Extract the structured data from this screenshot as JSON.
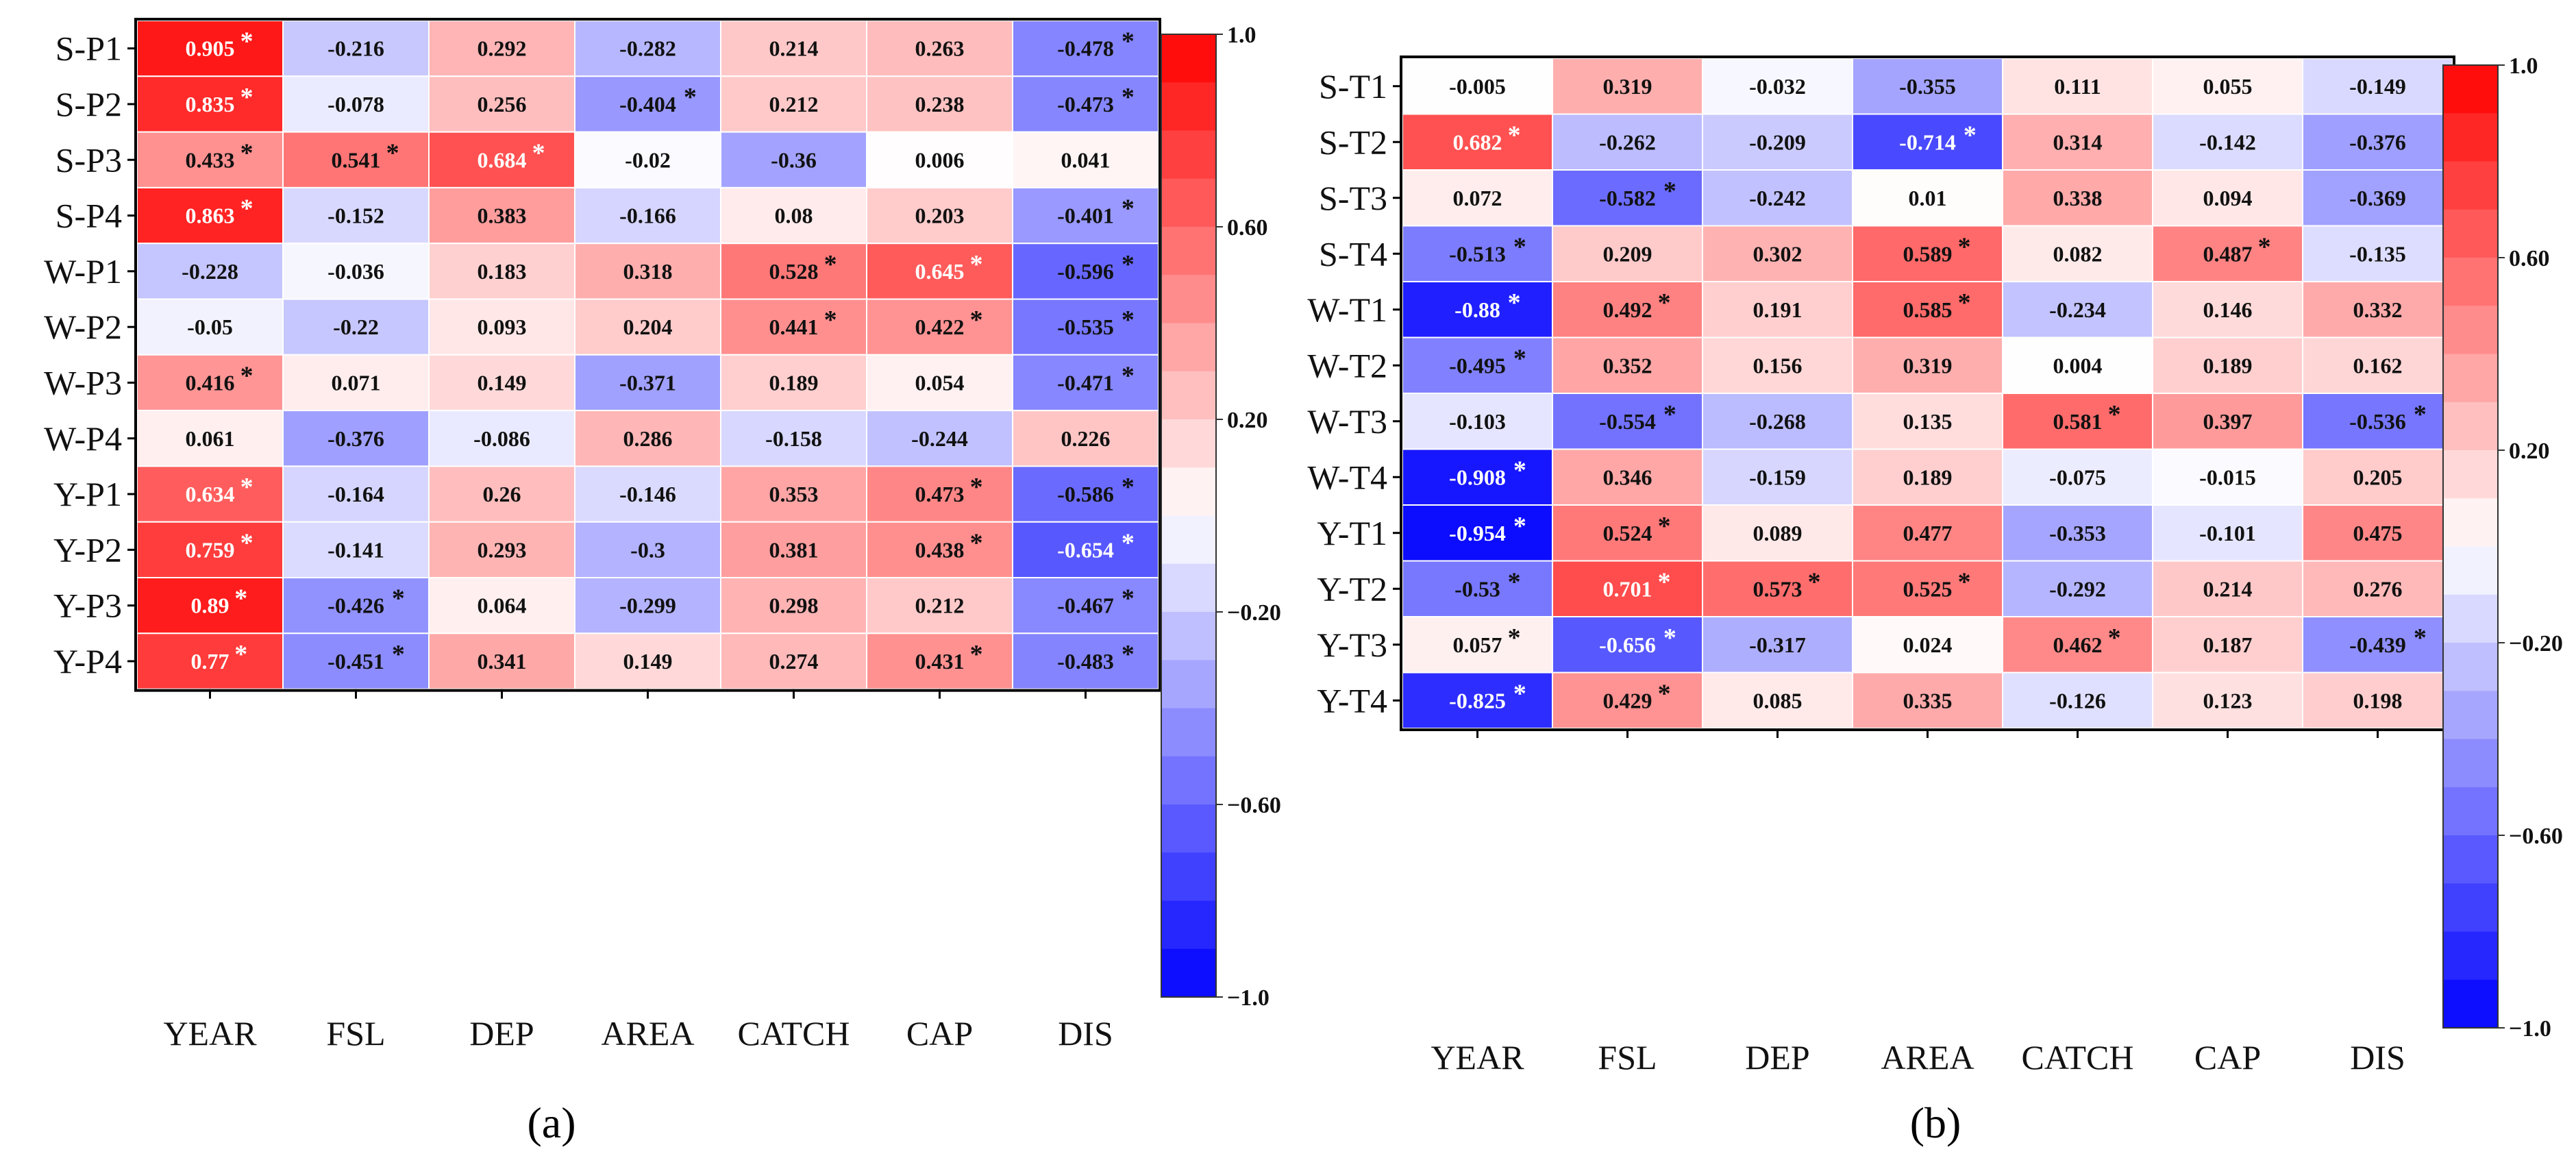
{
  "chart_data": [
    {
      "type": "heatmap",
      "panel_label": "(a)",
      "rows": [
        "S-P1",
        "S-P2",
        "S-P3",
        "S-P4",
        "W-P1",
        "W-P2",
        "W-P3",
        "W-P4",
        "Y-P1",
        "Y-P2",
        "Y-P3",
        "Y-P4"
      ],
      "columns": [
        "YEAR",
        "FSL",
        "DEP",
        "AREA",
        "CATCH",
        "CAP",
        "DIS"
      ],
      "values": [
        [
          0.905,
          -0.216,
          0.292,
          -0.282,
          0.214,
          0.263,
          -0.478
        ],
        [
          0.835,
          -0.078,
          0.256,
          -0.404,
          0.212,
          0.238,
          -0.473
        ],
        [
          0.433,
          0.541,
          0.684,
          -0.02,
          -0.36,
          0.006,
          0.041
        ],
        [
          0.863,
          -0.152,
          0.383,
          -0.166,
          0.08,
          0.203,
          -0.401
        ],
        [
          -0.228,
          -0.036,
          0.183,
          0.318,
          0.528,
          0.645,
          -0.596
        ],
        [
          -0.05,
          -0.22,
          0.093,
          0.204,
          0.441,
          0.422,
          -0.535
        ],
        [
          0.416,
          0.071,
          0.149,
          -0.371,
          0.189,
          0.054,
          -0.471
        ],
        [
          0.061,
          -0.376,
          -0.086,
          0.286,
          -0.158,
          -0.244,
          0.226
        ],
        [
          0.634,
          -0.164,
          0.26,
          -0.146,
          0.353,
          0.473,
          -0.586
        ],
        [
          0.759,
          -0.141,
          0.293,
          -0.3,
          0.381,
          0.438,
          -0.654
        ],
        [
          0.89,
          -0.426,
          0.064,
          -0.299,
          0.298,
          0.212,
          -0.467
        ],
        [
          0.77,
          -0.451,
          0.341,
          0.149,
          0.274,
          0.431,
          -0.483
        ]
      ],
      "labels": [
        [
          "0.905",
          "-0.216",
          "0.292",
          "-0.282",
          "0.214",
          "0.263",
          "-0.478"
        ],
        [
          "0.835",
          "-0.078",
          "0.256",
          "-0.404",
          "0.212",
          "0.238",
          "-0.473"
        ],
        [
          "0.433",
          "0.541",
          "0.684",
          "-0.02",
          "-0.36",
          "0.006",
          "0.041"
        ],
        [
          "0.863",
          "-0.152",
          "0.383",
          "-0.166",
          "0.08",
          "0.203",
          "-0.401"
        ],
        [
          "-0.228",
          "-0.036",
          "0.183",
          "0.318",
          "0.528",
          "0.645",
          "-0.596"
        ],
        [
          "-0.05",
          "-0.22",
          "0.093",
          "0.204",
          "0.441",
          "0.422",
          "-0.535"
        ],
        [
          "0.416",
          "0.071",
          "0.149",
          "-0.371",
          "0.189",
          "0.054",
          "-0.471"
        ],
        [
          "0.061",
          "-0.376",
          "-0.086",
          "0.286",
          "-0.158",
          "-0.244",
          "0.226"
        ],
        [
          "0.634",
          "-0.164",
          "0.26",
          "-0.146",
          "0.353",
          "0.473",
          "-0.586"
        ],
        [
          "0.759",
          "-0.141",
          "0.293",
          "-0.3",
          "0.381",
          "0.438",
          "-0.654"
        ],
        [
          "0.89",
          "-0.426",
          "0.064",
          "-0.299",
          "0.298",
          "0.212",
          "-0.467"
        ],
        [
          "0.77",
          "-0.451",
          "0.341",
          "0.149",
          "0.274",
          "0.431",
          "-0.483"
        ]
      ],
      "significant": [
        [
          1,
          0,
          0,
          0,
          0,
          0,
          1
        ],
        [
          1,
          0,
          0,
          1,
          0,
          0,
          1
        ],
        [
          1,
          1,
          1,
          0,
          0,
          0,
          0
        ],
        [
          1,
          0,
          0,
          0,
          0,
          0,
          1
        ],
        [
          0,
          0,
          0,
          0,
          1,
          1,
          1
        ],
        [
          0,
          0,
          0,
          0,
          1,
          1,
          1
        ],
        [
          1,
          0,
          0,
          0,
          0,
          0,
          1
        ],
        [
          0,
          0,
          0,
          0,
          0,
          0,
          0
        ],
        [
          1,
          0,
          0,
          0,
          0,
          1,
          1
        ],
        [
          1,
          0,
          0,
          0,
          0,
          1,
          1
        ],
        [
          1,
          1,
          0,
          0,
          0,
          0,
          1
        ],
        [
          1,
          1,
          0,
          0,
          0,
          1,
          1
        ]
      ],
      "significance_marker": "*",
      "colorbar": {
        "range": [
          -1.0,
          1.0
        ],
        "ticks": [
          "1.0",
          "0.60",
          "0.20",
          "−0.20",
          "−0.60",
          "−1.0"
        ],
        "tick_values": [
          1.0,
          0.6,
          0.2,
          -0.2,
          -0.6,
          -1.0
        ]
      }
    },
    {
      "type": "heatmap",
      "panel_label": "(b)",
      "rows": [
        "S-T1",
        "S-T2",
        "S-T3",
        "S-T4",
        "W-T1",
        "W-T2",
        "W-T3",
        "W-T4",
        "Y-T1",
        "Y-T2",
        "Y-T3",
        "Y-T4"
      ],
      "columns": [
        "YEAR",
        "FSL",
        "DEP",
        "AREA",
        "CATCH",
        "CAP",
        "DIS"
      ],
      "values": [
        [
          -0.005,
          0.319,
          -0.032,
          -0.355,
          0.111,
          0.055,
          -0.149
        ],
        [
          0.682,
          -0.262,
          -0.209,
          -0.714,
          0.314,
          -0.142,
          -0.376
        ],
        [
          0.072,
          -0.582,
          -0.242,
          0.01,
          0.338,
          0.094,
          -0.369
        ],
        [
          -0.513,
          0.209,
          0.302,
          0.589,
          0.082,
          0.487,
          -0.135
        ],
        [
          -0.88,
          0.492,
          0.191,
          0.585,
          -0.234,
          0.146,
          0.332
        ],
        [
          -0.495,
          0.352,
          0.156,
          0.319,
          0.004,
          0.189,
          0.162
        ],
        [
          -0.103,
          -0.554,
          -0.268,
          0.135,
          0.581,
          0.397,
          -0.536
        ],
        [
          -0.908,
          0.346,
          -0.159,
          0.189,
          -0.075,
          -0.015,
          0.205
        ],
        [
          -0.954,
          0.524,
          0.089,
          0.477,
          -0.353,
          -0.101,
          0.475
        ],
        [
          -0.53,
          0.701,
          0.573,
          0.525,
          -0.292,
          0.214,
          0.276
        ],
        [
          0.057,
          -0.656,
          -0.317,
          0.024,
          0.462,
          0.187,
          -0.439
        ],
        [
          -0.825,
          0.429,
          0.085,
          0.335,
          -0.126,
          0.123,
          0.198
        ]
      ],
      "labels": [
        [
          "-0.005",
          "0.319",
          "-0.032",
          "-0.355",
          "0.111",
          "0.055",
          "-0.149"
        ],
        [
          "0.682",
          "-0.262",
          "-0.209",
          "-0.714",
          "0.314",
          "-0.142",
          "-0.376"
        ],
        [
          "0.072",
          "-0.582",
          "-0.242",
          "0.01",
          "0.338",
          "0.094",
          "-0.369"
        ],
        [
          "-0.513",
          "0.209",
          "0.302",
          "0.589",
          "0.082",
          "0.487",
          "-0.135"
        ],
        [
          "-0.88",
          "0.492",
          "0.191",
          "0.585",
          "-0.234",
          "0.146",
          "0.332"
        ],
        [
          "-0.495",
          "0.352",
          "0.156",
          "0.319",
          "0.004",
          "0.189",
          "0.162"
        ],
        [
          "-0.103",
          "-0.554",
          "-0.268",
          "0.135",
          "0.581",
          "0.397",
          "-0.536"
        ],
        [
          "-0.908",
          "0.346",
          "-0.159",
          "0.189",
          "-0.075",
          "-0.015",
          "0.205"
        ],
        [
          "-0.954",
          "0.524",
          "0.089",
          "0.477",
          "-0.353",
          "-0.101",
          "0.475"
        ],
        [
          "-0.53",
          "0.701",
          "0.573",
          "0.525",
          "-0.292",
          "0.214",
          "0.276"
        ],
        [
          "0.057",
          "-0.656",
          "-0.317",
          "0.024",
          "0.462",
          "0.187",
          "-0.439"
        ],
        [
          "-0.825",
          "0.429",
          "0.085",
          "0.335",
          "-0.126",
          "0.123",
          "0.198"
        ]
      ],
      "significant": [
        [
          0,
          0,
          0,
          0,
          0,
          0,
          0
        ],
        [
          1,
          0,
          0,
          1,
          0,
          0,
          0
        ],
        [
          0,
          1,
          0,
          0,
          0,
          0,
          0
        ],
        [
          1,
          0,
          0,
          1,
          0,
          1,
          0
        ],
        [
          1,
          1,
          0,
          1,
          0,
          0,
          0
        ],
        [
          1,
          0,
          0,
          0,
          0,
          0,
          0
        ],
        [
          0,
          1,
          0,
          0,
          1,
          0,
          1
        ],
        [
          1,
          0,
          0,
          0,
          0,
          0,
          0
        ],
        [
          1,
          1,
          0,
          0,
          0,
          0,
          0
        ],
        [
          1,
          1,
          1,
          1,
          0,
          0,
          0
        ],
        [
          1,
          1,
          0,
          0,
          1,
          0,
          1
        ],
        [
          1,
          1,
          0,
          0,
          0,
          0,
          0
        ]
      ],
      "significance_marker": "*",
      "colorbar": {
        "range": [
          -1.0,
          1.0
        ],
        "ticks": [
          "1.0",
          "0.60",
          "0.20",
          "−0.20",
          "−0.60",
          "−1.0"
        ],
        "tick_values": [
          1.0,
          0.6,
          0.2,
          -0.2,
          -0.6,
          -1.0
        ]
      }
    }
  ]
}
